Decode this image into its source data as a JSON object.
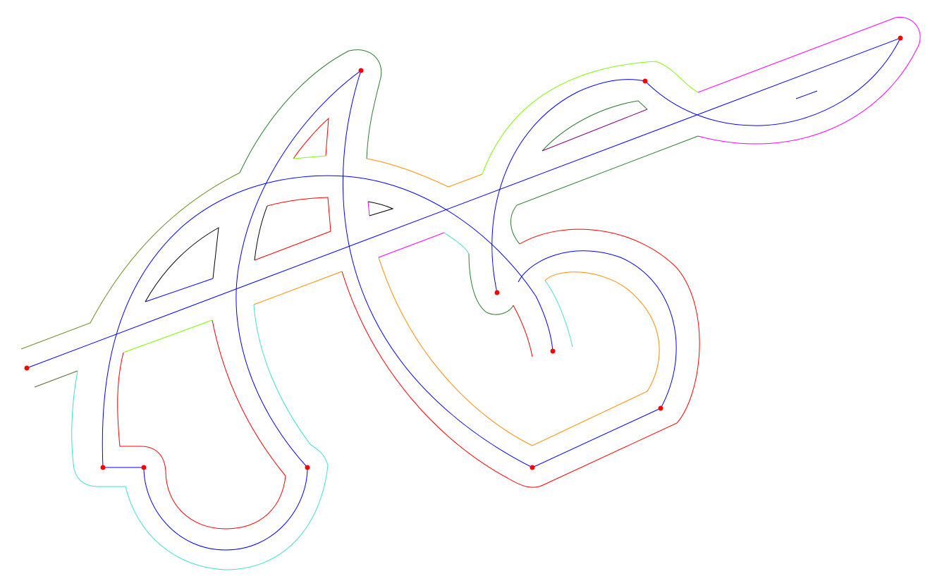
{
  "diagram": {
    "background": "#ffffff",
    "centerline_color": "#0000ff",
    "point_color": "#ff0000",
    "offset_colors": {
      "red": "#ff0000",
      "dark-green": "#2e7d32",
      "olive-green": "#6b8e23",
      "lime": "#7cfc00",
      "orange": "#ff8c00",
      "cyan": "#40e0d0",
      "magenta": "#ff00ff",
      "black": "#000000",
      "purple": "#800080"
    },
    "point_count": 11
  }
}
